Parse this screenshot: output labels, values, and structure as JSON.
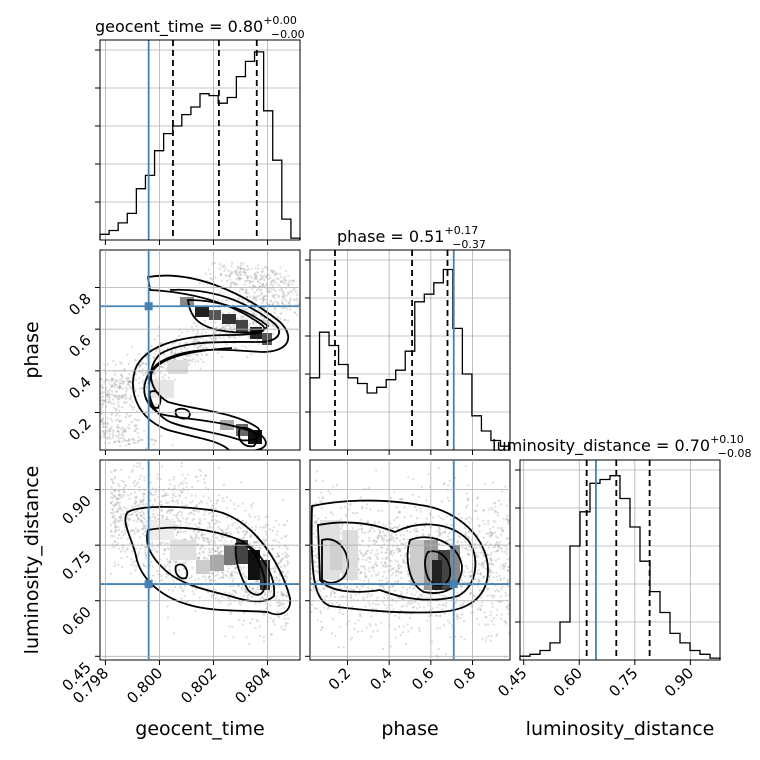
{
  "chart_data": {
    "type": "corner",
    "parameters": [
      "geocent_time",
      "phase",
      "luminosity_distance"
    ],
    "titles": [
      {
        "param": "geocent_time",
        "label": "geocent_time = 0.80",
        "upper": "+0.00",
        "lower": "−0.00"
      },
      {
        "param": "phase",
        "label": "phase = 0.51",
        "upper": "+0.17",
        "lower": "−0.37"
      },
      {
        "param": "luminosity_distance",
        "label": "luminosity_distance = 0.70",
        "upper": "+0.10",
        "lower": "−0.08"
      }
    ],
    "truths": {
      "geocent_time": 0.7996,
      "phase": 0.71,
      "luminosity_distance": 0.645
    },
    "quantiles": {
      "geocent_time": [
        0.8005,
        0.8022,
        0.8036
      ],
      "phase": [
        0.14,
        0.51,
        0.68
      ],
      "luminosity_distance": [
        0.62,
        0.7,
        0.79
      ]
    },
    "ranges": {
      "geocent_time": [
        0.7978,
        0.8052
      ],
      "phase": [
        0.02,
        0.98
      ],
      "luminosity_distance": [
        0.44,
        0.98
      ]
    },
    "ticks": {
      "geocent_time": {
        "values": [
          0.798,
          0.8,
          0.802,
          0.804
        ],
        "labels": [
          "0.798",
          "0.800",
          "0.802",
          "0.804"
        ]
      },
      "phase_x": {
        "values": [
          0.2,
          0.4,
          0.6,
          0.8
        ],
        "labels": [
          "0.2",
          "0.4",
          "0.6",
          "0.8"
        ]
      },
      "phase_y": {
        "values": [
          0.2,
          0.4,
          0.6,
          0.8
        ],
        "labels": [
          "0.2",
          "0.4",
          "0.6",
          "0.8"
        ]
      },
      "luminosity_distance": {
        "values": [
          0.45,
          0.6,
          0.75,
          0.9
        ],
        "labels": [
          "0.45",
          "0.60",
          "0.75",
          "0.90"
        ]
      }
    },
    "histograms": {
      "geocent_time": [
        0.03,
        0.05,
        0.09,
        0.14,
        0.27,
        0.34,
        0.47,
        0.56,
        0.6,
        0.66,
        0.7,
        0.77,
        0.76,
        0.72,
        0.75,
        0.86,
        0.94,
        0.99,
        0.68,
        0.42,
        0.11,
        0.01
      ],
      "phase": [
        0.38,
        0.62,
        0.55,
        0.45,
        0.38,
        0.35,
        0.3,
        0.33,
        0.37,
        0.42,
        0.52,
        0.78,
        0.82,
        0.88,
        0.95,
        0.64,
        0.4,
        0.18,
        0.1,
        0.05,
        0.02
      ],
      "luminosity_distance": [
        0.02,
        0.03,
        0.05,
        0.09,
        0.2,
        0.6,
        0.78,
        0.93,
        0.95,
        0.97,
        0.85,
        0.7,
        0.52,
        0.36,
        0.25,
        0.14,
        0.09,
        0.05,
        0.03,
        0.01
      ]
    },
    "xlabels": [
      "geocent_time",
      "phase",
      "luminosity_distance"
    ],
    "ylabels": [
      "",
      "phase",
      "luminosity_distance"
    ],
    "grid": true
  }
}
